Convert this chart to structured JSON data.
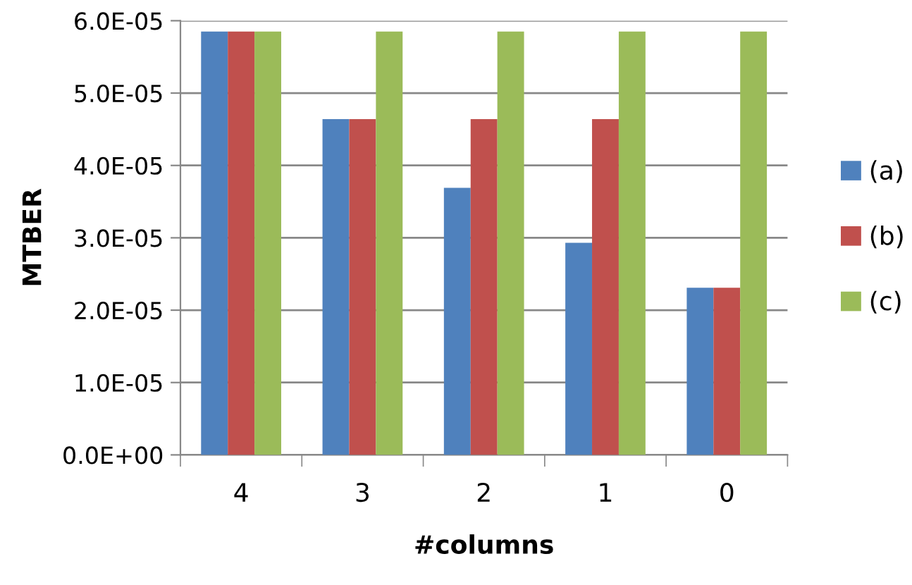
{
  "chart_data": {
    "type": "bar",
    "xlabel": "#columns",
    "ylabel": "MTBER",
    "categories": [
      "4",
      "3",
      "2",
      "1",
      "0"
    ],
    "series": [
      {
        "name": "(a)",
        "color": "#4f81bd",
        "values": [
          5.85e-05,
          4.64e-05,
          3.69e-05,
          2.93e-05,
          2.31e-05
        ]
      },
      {
        "name": "(b)",
        "color": "#c0504d",
        "values": [
          5.85e-05,
          4.64e-05,
          4.64e-05,
          4.64e-05,
          2.31e-05
        ]
      },
      {
        "name": "(c)",
        "color": "#9bbb59",
        "values": [
          5.85e-05,
          5.85e-05,
          5.85e-05,
          5.85e-05,
          5.85e-05
        ]
      }
    ],
    "ylim": [
      0,
      6e-05
    ],
    "yticks": [
      {
        "value": 0,
        "label": "0.0E+00"
      },
      {
        "value": 1e-05,
        "label": "1.0E-05"
      },
      {
        "value": 2e-05,
        "label": "2.0E-05"
      },
      {
        "value": 3e-05,
        "label": "3.0E-05"
      },
      {
        "value": 4e-05,
        "label": "4.0E-05"
      },
      {
        "value": 5e-05,
        "label": "5.0E-05"
      },
      {
        "value": 6e-05,
        "label": "6.0E-05"
      }
    ],
    "grid": "y",
    "legend": "right"
  }
}
